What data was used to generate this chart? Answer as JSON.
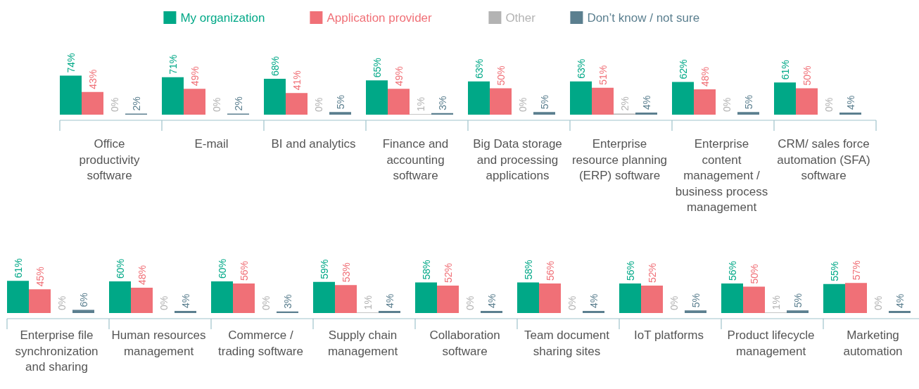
{
  "chart_data": [
    {
      "type": "bar",
      "legend": "top",
      "categories": [
        "Office productivity software",
        "E-mail",
        "BI and analytics",
        "Finance and accounting software",
        "Big Data storage and processing applications",
        "Enterprise resource planning (ERP) software",
        "Enterprise content management / business process management",
        "CRM/ sales force automation (SFA) software"
      ],
      "series": [
        {
          "name": "My organization",
          "color": "#00a887",
          "values": [
            74,
            71,
            68,
            65,
            63,
            63,
            62,
            61
          ],
          "value_labels": [
            "74%",
            "71%",
            "68%",
            "65%",
            "63%",
            "63%",
            "62%",
            "61%"
          ]
        },
        {
          "name": "Application provider",
          "color": "#f07077",
          "values": [
            43,
            49,
            41,
            49,
            50,
            51,
            48,
            50
          ],
          "value_labels": [
            "43%",
            "49%",
            "41%",
            "49%",
            "50%",
            "51%",
            "48%",
            "50%"
          ]
        },
        {
          "name": "Other",
          "color": "#b3b3b3",
          "values": [
            0,
            0,
            0,
            1,
            0,
            2,
            0,
            0
          ],
          "value_labels": [
            "0%",
            "0%",
            "0%",
            "1%",
            "0%",
            "2%",
            "0%",
            "0%"
          ]
        },
        {
          "name": "Don’t know / not sure",
          "color": "#5b7f8f",
          "values": [
            2,
            2,
            5,
            3,
            5,
            4,
            5,
            4
          ],
          "value_labels": [
            "2%",
            "2%",
            "5%",
            "3%",
            "5%",
            "4%",
            "5%",
            "4%"
          ]
        }
      ]
    },
    {
      "type": "bar",
      "categories": [
        "Enterprise file synchronization and sharing",
        "Human resources management",
        "Commerce / trading software",
        "Supply chain management",
        "Collaboration software",
        "Team document sharing sites",
        "IoT platforms",
        "Product lifecycle management",
        "Marketing automation"
      ],
      "series": [
        {
          "color": "#00a887",
          "values": [
            61,
            60,
            60,
            59,
            58,
            58,
            56,
            56,
            55
          ],
          "value_labels": [
            "61%",
            "60%",
            "60%",
            "59%",
            "58%",
            "58%",
            "56%",
            "56%",
            "55%"
          ]
        },
        {
          "color": "#f07077",
          "values": [
            45,
            48,
            56,
            53,
            52,
            56,
            52,
            50,
            57
          ],
          "value_labels": [
            "45%",
            "48%",
            "56%",
            "53%",
            "52%",
            "56%",
            "52%",
            "50%",
            "57%"
          ]
        },
        {
          "color": "#b3b3b3",
          "values": [
            0,
            0,
            0,
            1,
            0,
            0,
            0,
            1,
            0
          ],
          "value_labels": [
            "0%",
            "0%",
            "0%",
            "1%",
            "0%",
            "0%",
            "0%",
            "1%",
            "0%"
          ]
        },
        {
          "color": "#5b7f8f",
          "values": [
            6,
            4,
            3,
            4,
            4,
            4,
            5,
            5,
            4
          ],
          "value_labels": [
            "6%",
            "4%",
            "3%",
            "4%",
            "4%",
            "4%",
            "5%",
            "5%",
            "4%"
          ]
        }
      ]
    }
  ]
}
